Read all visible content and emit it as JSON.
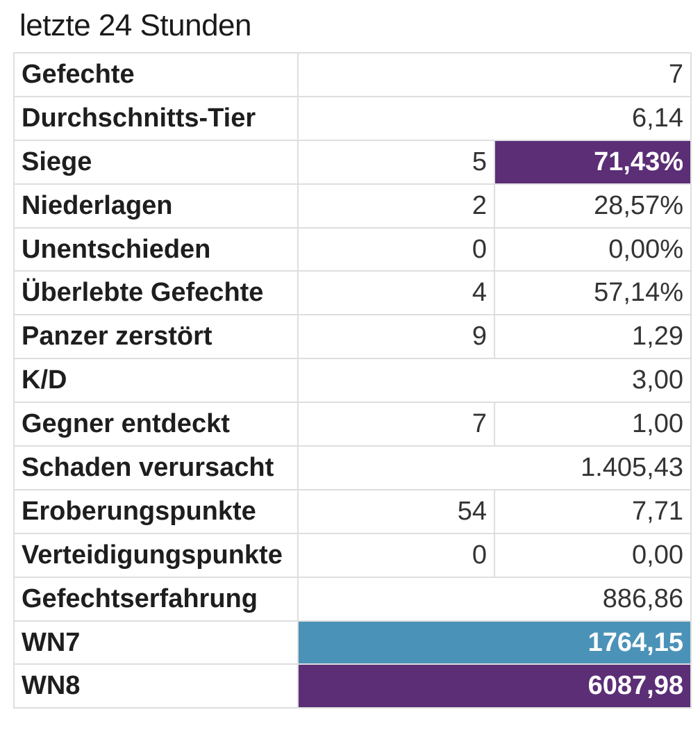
{
  "title": "letzte 24 Stunden",
  "colors": {
    "purple": "#5b2e76",
    "blue": "#4b92b8"
  },
  "rows": [
    {
      "label": "Gefechte",
      "value": "7"
    },
    {
      "label": "Durchschnitts-Tier",
      "value": "6,14"
    },
    {
      "label": "Siege",
      "count": "5",
      "value": "71,43%",
      "highlight": "purple"
    },
    {
      "label": "Niederlagen",
      "count": "2",
      "value": "28,57%"
    },
    {
      "label": "Unentschieden",
      "count": "0",
      "value": "0,00%"
    },
    {
      "label": "Überlebte Gefechte",
      "count": "4",
      "value": "57,14%"
    },
    {
      "label": "Panzer zerstört",
      "count": "9",
      "value": "1,29"
    },
    {
      "label": "K/D",
      "value": "3,00"
    },
    {
      "label": "Gegner entdeckt",
      "count": "7",
      "value": "1,00"
    },
    {
      "label": "Schaden verursacht",
      "value": "1.405,43"
    },
    {
      "label": "Eroberungspunkte",
      "count": "54",
      "value": "7,71"
    },
    {
      "label": "Verteidigungspunkte",
      "count": "0",
      "value": "0,00"
    },
    {
      "label": "Gefechtserfahrung",
      "value": "886,86"
    },
    {
      "label": "WN7",
      "value": "1764,15",
      "highlight": "blue"
    },
    {
      "label": "WN8",
      "value": "6087,98",
      "highlight": "purple"
    }
  ]
}
